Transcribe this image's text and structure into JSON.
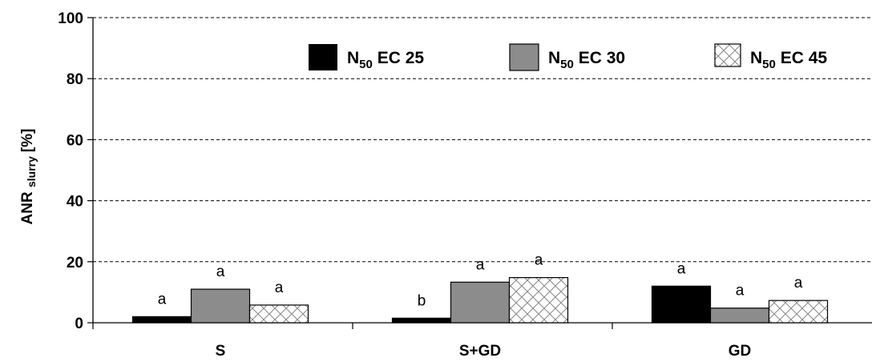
{
  "chart_data": {
    "type": "bar",
    "categories": [
      "S",
      "S+GD",
      "GD"
    ],
    "series": [
      {
        "name_main": "N",
        "name_sub": "50",
        "name_rest": " EC 25",
        "name": "N50 EC 25",
        "values": [
          2.0,
          1.5,
          12.0
        ],
        "labels": [
          "a",
          "b",
          "a"
        ],
        "fill": "#000000",
        "pattern": "solid"
      },
      {
        "name_main": "N",
        "name_sub": "50",
        "name_rest": " EC 30",
        "name": "N50 EC 30",
        "values": [
          11.0,
          13.3,
          4.8
        ],
        "labels": [
          "a",
          "a",
          "a"
        ],
        "fill": "#8c8c8c",
        "pattern": "solid"
      },
      {
        "name_main": "N",
        "name_sub": "50",
        "name_rest": " EC 45",
        "name": "N50 EC 45",
        "values": [
          5.8,
          14.8,
          7.3
        ],
        "labels": [
          "a",
          "a",
          "a"
        ],
        "fill": "#ffffff",
        "pattern": "crosshatch"
      }
    ],
    "ylabel_main": "ANR",
    "ylabel_sub": "slurry",
    "ylabel_unit": "[%]",
    "ylim": [
      0,
      100
    ],
    "yticks": [
      "0",
      "20",
      "40",
      "60",
      "80",
      "100"
    ],
    "grid": true,
    "legend_position": "top"
  }
}
